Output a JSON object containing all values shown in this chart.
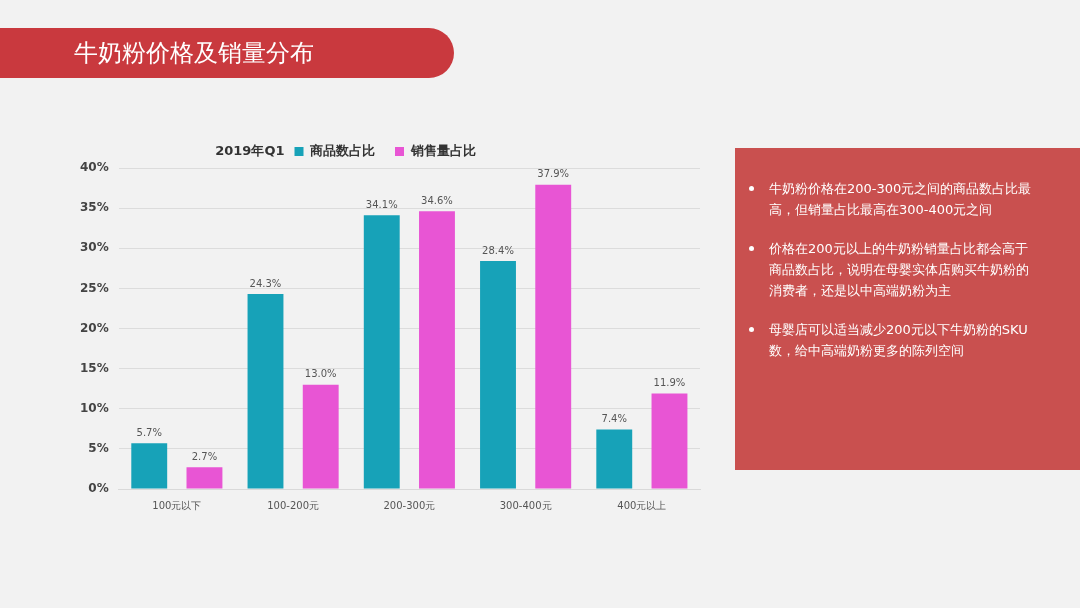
{
  "chart_data": {
    "type": "bar",
    "title": "牛奶粉价格及销量分布",
    "legend_title": "2019年Q1",
    "categories": [
      "100元以下",
      "100-200元",
      "200-300元",
      "300-400元",
      "400元以上"
    ],
    "series": [
      {
        "name": "商品数占比",
        "color": "#17a2b8",
        "values": [
          5.7,
          24.3,
          34.1,
          28.4,
          7.4
        ],
        "value_labels": [
          "5.7%",
          "24.3%",
          "34.1%",
          "28.4%",
          "7.4%"
        ]
      },
      {
        "name": "销售量占比",
        "color": "#e855d4",
        "values": [
          2.7,
          13.0,
          34.6,
          37.9,
          11.9
        ],
        "value_labels": [
          "2.7%",
          "13.0%",
          "34.6%",
          "37.9%",
          "11.9%"
        ]
      }
    ],
    "ylim": [
      0,
      40
    ],
    "yticks": [
      {
        "value": 0,
        "label": "0%"
      },
      {
        "value": 5,
        "label": "5%"
      },
      {
        "value": 10,
        "label": "10%"
      },
      {
        "value": 15,
        "label": "15%"
      },
      {
        "value": 20,
        "label": "20%"
      },
      {
        "value": 25,
        "label": "25%"
      },
      {
        "value": 30,
        "label": "30%"
      },
      {
        "value": 35,
        "label": "35%"
      },
      {
        "value": 40,
        "label": "40%"
      }
    ],
    "grid": "y",
    "legend": "top",
    "annotations": [
      "牛奶粉价格在200-300元之间的商品数占比最高，但销量占比最高在300-400元之间",
      "价格在200元以上的牛奶粉销量占比都会高于商品数占比，说明在母婴实体店购买牛奶粉的消费者，还是以中高端奶粉为主",
      "母婴店可以适当减少200元以下牛奶粉的SKU数，给中高端奶粉更多的陈列空间"
    ]
  }
}
